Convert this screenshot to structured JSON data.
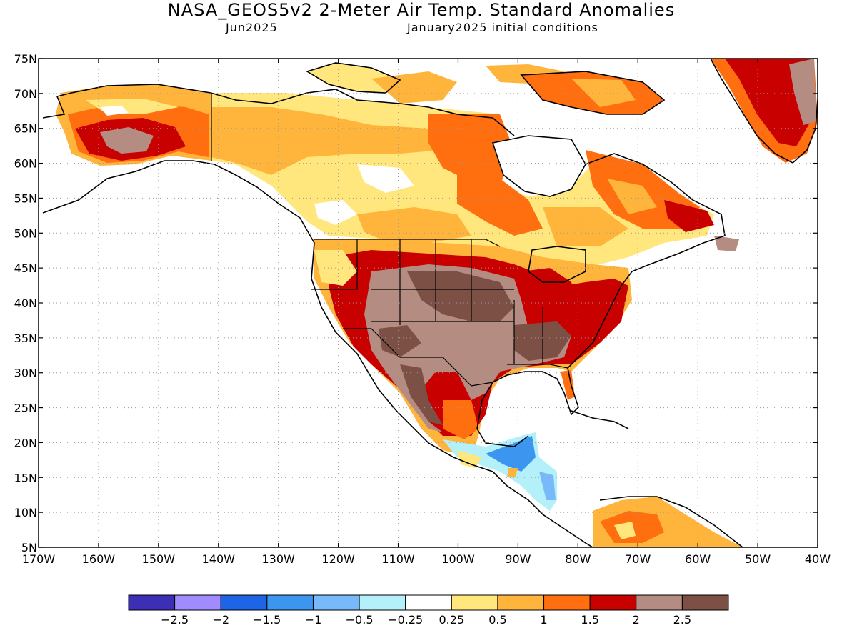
{
  "title": "NASA_GEOS5v2 2-Meter Air Temp. Standard Anomalies",
  "subtitle_left": "Jun2025",
  "subtitle_right": "January2025 initial conditions",
  "map": {
    "lon_ticks": [
      "170W",
      "160W",
      "150W",
      "140W",
      "130W",
      "120W",
      "110W",
      "100W",
      "90W",
      "80W",
      "70W",
      "60W",
      "50W",
      "40W"
    ],
    "lat_ticks": [
      "75N",
      "70N",
      "65N",
      "60N",
      "55N",
      "50N",
      "45N",
      "40N",
      "35N",
      "30N",
      "25N",
      "20N",
      "15N",
      "10N",
      "5N"
    ],
    "lon_range": [
      -170,
      -40
    ],
    "lat_range": [
      5,
      75
    ],
    "grid": "dotted"
  },
  "colorbar": {
    "colors": [
      "#3c2fb5",
      "#a08cff",
      "#1e64e6",
      "#3c96f0",
      "#78b9fa",
      "#b4f0fa",
      "#ffffff",
      "#ffe67d",
      "#ffb43c",
      "#ff6e0f",
      "#c80000",
      "#b48c82",
      "#7d5046"
    ],
    "labels": [
      "−2.5",
      "−2",
      "−1.5",
      "−1",
      "−0.5",
      "−0.25",
      "0.25",
      "0.5",
      "1",
      "1.5",
      "2",
      "2.5"
    ]
  }
}
